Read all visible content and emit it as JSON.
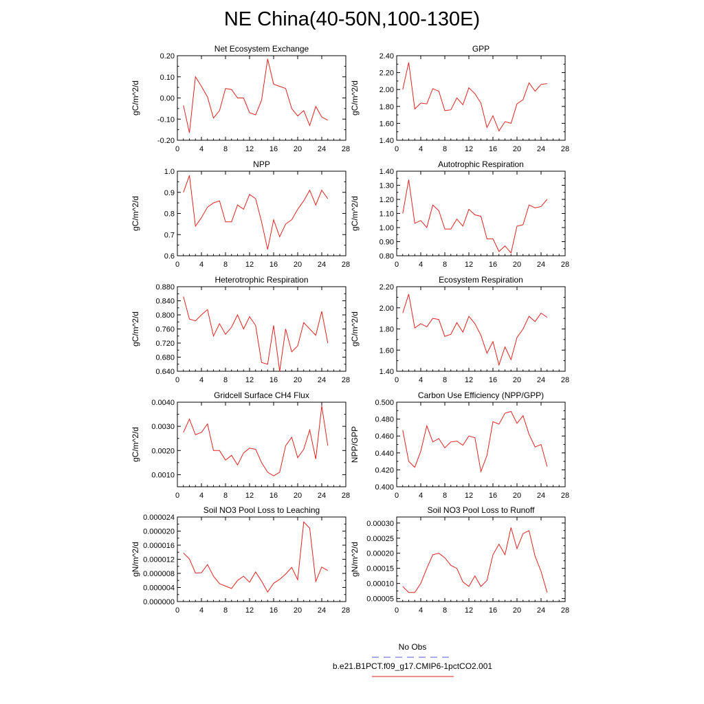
{
  "title": "NE China(40-50N,100-130E)",
  "legend": {
    "items": [
      {
        "label": "No Obs",
        "color": "#5555cc",
        "dash": "dashed"
      },
      {
        "label": "b.e21.B1PCT.f09_g17.CMIP6-1pctCO2.001",
        "color": "#dd2222",
        "dash": "solid"
      }
    ]
  },
  "chart_data": [
    {
      "type": "line",
      "title": "Net Ecosystem Exchange",
      "ylabel": "gC/m^2/d",
      "xlim": [
        0,
        28
      ],
      "ylim": [
        -0.2,
        0.2
      ],
      "xticks": [
        0,
        4,
        8,
        12,
        16,
        20,
        24,
        28
      ],
      "yticks": [
        -0.2,
        -0.1,
        0.0,
        0.1,
        0.2
      ],
      "ytick_labels": [
        "-0.20",
        "-0.10",
        "0.00",
        "0.10",
        "0.20"
      ],
      "x": [
        1,
        2,
        3,
        4,
        5,
        6,
        7,
        8,
        9,
        10,
        11,
        12,
        13,
        14,
        15,
        16,
        17,
        18,
        19,
        20,
        21,
        22,
        23,
        24,
        25
      ],
      "series": [
        {
          "color": "#dd2222",
          "values": [
            -0.035,
            -0.165,
            0.1,
            0.055,
            0.005,
            -0.095,
            -0.06,
            0.045,
            0.04,
            0.0,
            0.0,
            -0.07,
            -0.08,
            -0.01,
            0.185,
            0.065,
            0.055,
            0.045,
            -0.05,
            -0.085,
            -0.06,
            -0.13,
            -0.04,
            -0.09,
            -0.105
          ]
        }
      ]
    },
    {
      "type": "line",
      "title": "GPP",
      "ylabel": "gC/m^2/d",
      "xlim": [
        0,
        28
      ],
      "ylim": [
        1.4,
        2.4
      ],
      "xticks": [
        0,
        4,
        8,
        12,
        16,
        20,
        24,
        28
      ],
      "yticks": [
        1.4,
        1.6,
        1.8,
        2.0,
        2.2,
        2.4
      ],
      "ytick_labels": [
        "1.40",
        "1.60",
        "1.80",
        "2.00",
        "2.20",
        "2.40"
      ],
      "x": [
        1,
        2,
        3,
        4,
        5,
        6,
        7,
        8,
        9,
        10,
        11,
        12,
        13,
        14,
        15,
        16,
        17,
        18,
        19,
        20,
        21,
        22,
        23,
        24,
        25
      ],
      "series": [
        {
          "color": "#dd2222",
          "values": [
            2.0,
            2.32,
            1.77,
            1.84,
            1.83,
            2.01,
            1.98,
            1.75,
            1.76,
            1.9,
            1.82,
            2.02,
            1.95,
            1.84,
            1.55,
            1.69,
            1.51,
            1.62,
            1.6,
            1.83,
            1.88,
            2.08,
            1.98,
            2.06,
            2.07
          ]
        }
      ]
    },
    {
      "type": "line",
      "title": "NPP",
      "ylabel": "gC/m^2/d",
      "xlim": [
        0,
        28
      ],
      "ylim": [
        0.6,
        1.0
      ],
      "xticks": [
        0,
        4,
        8,
        12,
        16,
        20,
        24,
        28
      ],
      "yticks": [
        0.6,
        0.7,
        0.8,
        0.9,
        1.0
      ],
      "ytick_labels": [
        "0.6",
        "0.7",
        "0.8",
        "0.9",
        "1.0"
      ],
      "x": [
        1,
        2,
        3,
        4,
        5,
        6,
        7,
        8,
        9,
        10,
        11,
        12,
        13,
        14,
        15,
        16,
        17,
        18,
        19,
        20,
        21,
        22,
        23,
        24,
        25
      ],
      "series": [
        {
          "color": "#dd2222",
          "values": [
            0.9,
            0.98,
            0.74,
            0.78,
            0.83,
            0.85,
            0.86,
            0.76,
            0.76,
            0.84,
            0.82,
            0.89,
            0.87,
            0.76,
            0.63,
            0.77,
            0.69,
            0.75,
            0.77,
            0.82,
            0.86,
            0.91,
            0.84,
            0.91,
            0.87
          ]
        }
      ]
    },
    {
      "type": "line",
      "title": "Autotrophic Respiration",
      "ylabel": "gC/m^2/d",
      "xlim": [
        0,
        28
      ],
      "ylim": [
        0.8,
        1.4
      ],
      "xticks": [
        0,
        4,
        8,
        12,
        16,
        20,
        24,
        28
      ],
      "yticks": [
        0.8,
        0.9,
        1.0,
        1.1,
        1.2,
        1.3,
        1.4
      ],
      "ytick_labels": [
        "0.80",
        "0.90",
        "1.00",
        "1.10",
        "1.20",
        "1.30",
        "1.40"
      ],
      "x": [
        1,
        2,
        3,
        4,
        5,
        6,
        7,
        8,
        9,
        10,
        11,
        12,
        13,
        14,
        15,
        16,
        17,
        18,
        19,
        20,
        21,
        22,
        23,
        24,
        25
      ],
      "series": [
        {
          "color": "#dd2222",
          "values": [
            1.1,
            1.34,
            1.03,
            1.05,
            1.0,
            1.16,
            1.12,
            0.99,
            0.99,
            1.06,
            1.01,
            1.13,
            1.09,
            1.08,
            0.92,
            0.92,
            0.83,
            0.87,
            0.82,
            1.01,
            1.02,
            1.16,
            1.14,
            1.15,
            1.2
          ]
        }
      ]
    },
    {
      "type": "line",
      "title": "Heterotrophic Respiration",
      "ylabel": "gC/m^2/d",
      "xlim": [
        0,
        28
      ],
      "ylim": [
        0.64,
        0.88
      ],
      "xticks": [
        0,
        4,
        8,
        12,
        16,
        20,
        24,
        28
      ],
      "yticks": [
        0.64,
        0.68,
        0.72,
        0.76,
        0.8,
        0.84,
        0.88
      ],
      "ytick_labels": [
        "0.640",
        "0.680",
        "0.720",
        "0.760",
        "0.800",
        "0.840",
        "0.880"
      ],
      "x": [
        1,
        2,
        3,
        4,
        5,
        6,
        7,
        8,
        9,
        10,
        11,
        12,
        13,
        14,
        15,
        16,
        17,
        18,
        19,
        20,
        21,
        22,
        23,
        24,
        25
      ],
      "series": [
        {
          "color": "#dd2222",
          "values": [
            0.852,
            0.788,
            0.783,
            0.8,
            0.815,
            0.74,
            0.775,
            0.745,
            0.765,
            0.8,
            0.76,
            0.795,
            0.77,
            0.665,
            0.66,
            0.77,
            0.64,
            0.76,
            0.695,
            0.712,
            0.778,
            0.76,
            0.742,
            0.81,
            0.72
          ]
        }
      ]
    },
    {
      "type": "line",
      "title": "Ecosystem Respiration",
      "ylabel": "gC/m^2/d",
      "xlim": [
        0,
        28
      ],
      "ylim": [
        1.4,
        2.2
      ],
      "xticks": [
        0,
        4,
        8,
        12,
        16,
        20,
        24,
        28
      ],
      "yticks": [
        1.4,
        1.6,
        1.8,
        2.0,
        2.2
      ],
      "ytick_labels": [
        "1.40",
        "1.60",
        "1.80",
        "2.00",
        "2.20"
      ],
      "x": [
        1,
        2,
        3,
        4,
        5,
        6,
        7,
        8,
        9,
        10,
        11,
        12,
        13,
        14,
        15,
        16,
        17,
        18,
        19,
        20,
        21,
        22,
        23,
        24,
        25
      ],
      "series": [
        {
          "color": "#dd2222",
          "values": [
            1.95,
            2.13,
            1.81,
            1.85,
            1.82,
            1.9,
            1.89,
            1.73,
            1.75,
            1.86,
            1.77,
            1.92,
            1.85,
            1.74,
            1.57,
            1.68,
            1.46,
            1.63,
            1.51,
            1.72,
            1.8,
            1.92,
            1.87,
            1.95,
            1.91
          ]
        }
      ]
    },
    {
      "type": "line",
      "title": "Gridcell Surface CH4 Flux",
      "ylabel": "gC/m^2/d",
      "xlim": [
        0,
        28
      ],
      "ylim": [
        0.0005,
        0.004
      ],
      "xticks": [
        0,
        4,
        8,
        12,
        16,
        20,
        24,
        28
      ],
      "yticks": [
        0.001,
        0.002,
        0.003,
        0.004
      ],
      "ytick_labels": [
        "0.0010",
        "0.0020",
        "0.0030",
        "0.0040"
      ],
      "x": [
        1,
        2,
        3,
        4,
        5,
        6,
        7,
        8,
        9,
        10,
        11,
        12,
        13,
        14,
        15,
        16,
        17,
        18,
        19,
        20,
        21,
        22,
        23,
        24,
        25
      ],
      "series": [
        {
          "color": "#dd2222",
          "values": [
            0.00275,
            0.0033,
            0.00265,
            0.00275,
            0.0031,
            0.002,
            0.002,
            0.0016,
            0.0018,
            0.0014,
            0.0019,
            0.0021,
            0.00205,
            0.0015,
            0.0011,
            0.00095,
            0.0011,
            0.0022,
            0.00255,
            0.0017,
            0.00205,
            0.00285,
            0.00165,
            0.00385,
            0.0022
          ]
        }
      ]
    },
    {
      "type": "line",
      "title": "Carbon Use Efficiency (NPP/GPP)",
      "ylabel": "NPP/GPP",
      "xlim": [
        0,
        28
      ],
      "ylim": [
        0.4,
        0.5
      ],
      "xticks": [
        0,
        4,
        8,
        12,
        16,
        20,
        24,
        28
      ],
      "yticks": [
        0.4,
        0.42,
        0.44,
        0.46,
        0.48,
        0.5
      ],
      "ytick_labels": [
        "0.400",
        "0.420",
        "0.440",
        "0.460",
        "0.480",
        "0.500"
      ],
      "x": [
        1,
        2,
        3,
        4,
        5,
        6,
        7,
        8,
        9,
        10,
        11,
        12,
        13,
        14,
        15,
        16,
        17,
        18,
        19,
        20,
        21,
        22,
        23,
        24,
        25
      ],
      "series": [
        {
          "color": "#dd2222",
          "values": [
            0.467,
            0.43,
            0.423,
            0.442,
            0.472,
            0.453,
            0.457,
            0.446,
            0.453,
            0.454,
            0.449,
            0.46,
            0.458,
            0.418,
            0.437,
            0.477,
            0.474,
            0.487,
            0.489,
            0.475,
            0.484,
            0.462,
            0.447,
            0.45,
            0.424
          ]
        }
      ]
    },
    {
      "type": "line",
      "title": "Soil NO3 Pool Loss to Leaching",
      "ylabel": "gN/m^2/d",
      "xlim": [
        0,
        28
      ],
      "ylim": [
        0,
        2.4e-05
      ],
      "xticks": [
        0,
        4,
        8,
        12,
        16,
        20,
        24,
        28
      ],
      "yticks": [
        0,
        4e-06,
        8e-06,
        1.2e-05,
        1.6e-05,
        2e-05,
        2.4e-05
      ],
      "ytick_labels": [
        "0.000000",
        "0.000004",
        "0.000008",
        "0.000012",
        "0.000016",
        "0.000020",
        "0.000024"
      ],
      "x": [
        1,
        2,
        3,
        4,
        5,
        6,
        7,
        8,
        9,
        10,
        11,
        12,
        13,
        14,
        15,
        16,
        17,
        18,
        19,
        20,
        21,
        22,
        23,
        24,
        25
      ],
      "series": [
        {
          "color": "#dd2222",
          "values": [
            1.38e-05,
            1.21e-05,
            8.1e-06,
            8.2e-06,
            1.05e-05,
            7.2e-06,
            5.1e-06,
            4.4e-06,
            3.7e-06,
            6e-06,
            7.2e-06,
            5.5e-06,
            8.4e-06,
            5.8e-06,
            2.7e-06,
            5.2e-06,
            6.3e-06,
            7.8e-06,
            9.7e-06,
            6.2e-06,
            2.26e-05,
            2.08e-05,
            5.7e-06,
            9.8e-06,
            8.8e-06
          ]
        }
      ]
    },
    {
      "type": "line",
      "title": "Soil NO3 Pool Loss to Runoff",
      "ylabel": "gN/m^2/d",
      "xlim": [
        0,
        28
      ],
      "ylim": [
        4e-05,
        0.00032
      ],
      "xticks": [
        0,
        4,
        8,
        12,
        16,
        20,
        24,
        28
      ],
      "yticks": [
        5e-05,
        0.0001,
        0.00015,
        0.0002,
        0.00025,
        0.0003
      ],
      "ytick_labels": [
        "0.00005",
        "0.00010",
        "0.00015",
        "0.00020",
        "0.00025",
        "0.00030"
      ],
      "x": [
        1,
        2,
        3,
        4,
        5,
        6,
        7,
        8,
        9,
        10,
        11,
        12,
        13,
        14,
        15,
        16,
        17,
        18,
        19,
        20,
        21,
        22,
        23,
        24,
        25
      ],
      "series": [
        {
          "color": "#dd2222",
          "values": [
            9e-05,
            7e-05,
            7e-05,
            0.0001,
            0.00015,
            0.000195,
            0.0002,
            0.000185,
            0.00016,
            0.00015,
            0.000105,
            9e-05,
            0.000125,
            9e-05,
            0.00011,
            0.000195,
            0.00023,
            0.000195,
            0.000285,
            0.000215,
            0.000265,
            0.000275,
            0.00019,
            0.00014,
            7e-05
          ]
        }
      ]
    }
  ]
}
